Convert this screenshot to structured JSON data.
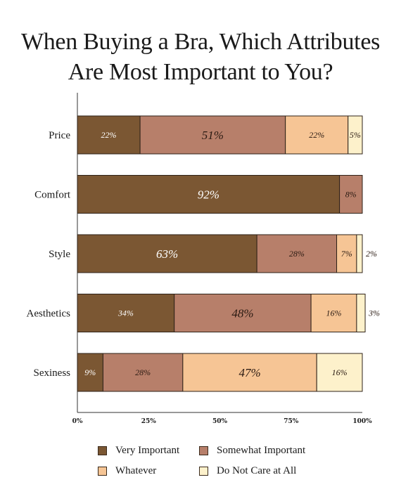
{
  "chart_data": {
    "type": "bar",
    "orientation": "horizontal",
    "stacked": true,
    "title_lines": [
      "When Buying a Bra, Which Attributes",
      "Are Most Important to You?"
    ],
    "categories": [
      "Price",
      "Comfort",
      "Style",
      "Aesthetics",
      "Sexiness"
    ],
    "series": [
      {
        "name": "Very Important",
        "color": "#7b5733",
        "label_color": "#ffffff",
        "values": [
          22,
          92,
          63,
          34,
          9
        ]
      },
      {
        "name": "Somewhat Important",
        "color": "#b77f6a",
        "label_color": "#2a1a12",
        "values": [
          51,
          8,
          28,
          48,
          28
        ]
      },
      {
        "name": "Whatever",
        "color": "#f6c595",
        "label_color": "#2a1a12",
        "values": [
          22,
          0,
          7,
          16,
          47
        ]
      },
      {
        "name": "Do Not Care at All",
        "color": "#fdf1cb",
        "label_color": "#2a1a12",
        "values": [
          5,
          0,
          2,
          3,
          16
        ]
      }
    ],
    "xlim": [
      0,
      100
    ],
    "x_ticks": [
      "0%",
      "25%",
      "50%",
      "75%",
      "100%"
    ],
    "legend_position": "bottom",
    "grid": false
  }
}
